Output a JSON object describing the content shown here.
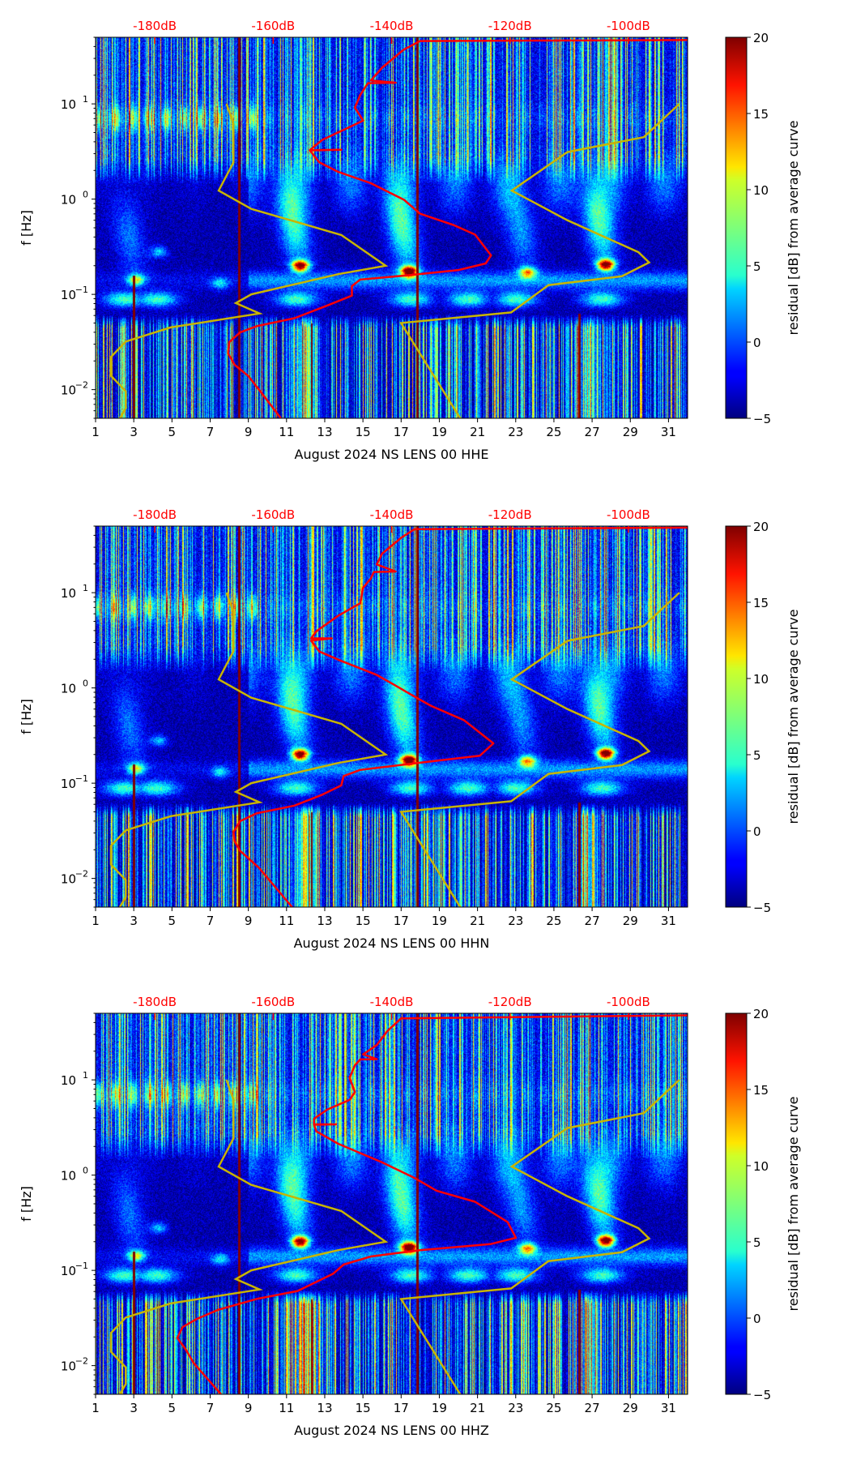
{
  "chart_data": [
    {
      "type": "heatmap",
      "xlabel": "August 2024 NS LENS 00 HHE",
      "ylabel": "f [Hz]",
      "xlim": [
        1,
        32
      ],
      "ylim": [
        0.005,
        50
      ],
      "yscale": "log",
      "xticks": [
        "1",
        "3",
        "5",
        "7",
        "9",
        "11",
        "13",
        "15",
        "17",
        "19",
        "21",
        "23",
        "25",
        "27",
        "29",
        "31"
      ],
      "yticks": [
        {
          "value": 10,
          "base": "10",
          "exp": "1"
        },
        {
          "value": 1,
          "base": "10",
          "exp": "0"
        },
        {
          "value": 0.1,
          "base": "10",
          "exp": "−1"
        },
        {
          "value": 0.01,
          "base": "10",
          "exp": "−2"
        }
      ],
      "top_axis": {
        "range_db": [
          -190,
          -90
        ],
        "ticks": [
          {
            "value": -180,
            "label": "-180dB"
          },
          {
            "value": -160,
            "label": "-160dB"
          },
          {
            "value": -140,
            "label": "-140dB"
          },
          {
            "value": -120,
            "label": "-120dB"
          },
          {
            "value": -100,
            "label": "-100dB"
          }
        ],
        "color": "#ff0000"
      },
      "colorbar": {
        "label": "residual [dB] from average curve",
        "range": [
          -5,
          20
        ],
        "ticks": [
          "−5",
          "0",
          "5",
          "10",
          "15",
          "20"
        ],
        "colormap": "jet"
      },
      "series": [
        {
          "name": "average curve",
          "color": "#ff0000",
          "points_db_hz": [
            [
              -90,
              46.8
            ],
            [
              -135.2,
              45.7
            ],
            [
              -138,
              36.9
            ],
            [
              -141.6,
              24.0
            ],
            [
              -143.5,
              17.6
            ],
            [
              -139.3,
              16.7
            ],
            [
              -144,
              16.5
            ],
            [
              -145.3,
              12.4
            ],
            [
              -146.2,
              9.12
            ],
            [
              -144.8,
              6.68
            ],
            [
              -147.1,
              5.71
            ],
            [
              -151.7,
              4.19
            ],
            [
              -153.8,
              3.27
            ],
            [
              -148.5,
              3.3
            ],
            [
              -153.8,
              3.25
            ],
            [
              -152.2,
              2.43
            ],
            [
              -149,
              1.93
            ],
            [
              -143.5,
              1.47
            ],
            [
              -137.9,
              0.984
            ],
            [
              -135.2,
              0.703
            ],
            [
              -129.6,
              0.537
            ],
            [
              -125.9,
              0.424
            ],
            [
              -123.2,
              0.257
            ],
            [
              -124.1,
              0.211
            ],
            [
              -128.7,
              0.18
            ],
            [
              -136.1,
              0.161
            ],
            [
              -145.3,
              0.143
            ],
            [
              -146.7,
              0.122
            ],
            [
              -146.7,
              0.097
            ],
            [
              -150.8,
              0.0767
            ],
            [
              -156.4,
              0.0562
            ],
            [
              -162.8,
              0.0463
            ],
            [
              -165.6,
              0.0398
            ],
            [
              -167.4,
              0.0316
            ],
            [
              -167.6,
              0.024
            ],
            [
              -166.5,
              0.0182
            ],
            [
              -164.2,
              0.0139
            ],
            [
              -161.9,
              0.00912
            ],
            [
              -158.7,
              0.005
            ]
          ]
        }
      ]
    },
    {
      "type": "heatmap",
      "xlabel": "August 2024 NS LENS 00 HHN",
      "ylabel": "f [Hz]",
      "xlim": [
        1,
        32
      ],
      "ylim": [
        0.005,
        50
      ],
      "yscale": "log",
      "xticks": [
        "1",
        "3",
        "5",
        "7",
        "9",
        "11",
        "13",
        "15",
        "17",
        "19",
        "21",
        "23",
        "25",
        "27",
        "29",
        "31"
      ],
      "yticks": [
        {
          "value": 10,
          "base": "10",
          "exp": "1"
        },
        {
          "value": 1,
          "base": "10",
          "exp": "0"
        },
        {
          "value": 0.1,
          "base": "10",
          "exp": "−1"
        },
        {
          "value": 0.01,
          "base": "10",
          "exp": "−2"
        }
      ],
      "top_axis": {
        "range_db": [
          -190,
          -90
        ],
        "ticks": [
          {
            "value": -180,
            "label": "-180dB"
          },
          {
            "value": -160,
            "label": "-160dB"
          },
          {
            "value": -140,
            "label": "-140dB"
          },
          {
            "value": -120,
            "label": "-120dB"
          },
          {
            "value": -100,
            "label": "-100dB"
          }
        ],
        "color": "#ff0000"
      },
      "colorbar": {
        "label": "residual [dB] from average curve",
        "range": [
          -5,
          20
        ],
        "ticks": [
          "−5",
          "0",
          "5",
          "10",
          "15",
          "20"
        ],
        "colormap": "jet"
      },
      "series": [
        {
          "name": "average curve",
          "color": "#ff0000",
          "points_db_hz": [
            [
              -90,
              48.2
            ],
            [
              -136.1,
              46.5
            ],
            [
              -138.4,
              37.6
            ],
            [
              -141.6,
              25.7
            ],
            [
              -142.5,
              19.8
            ],
            [
              -139.3,
              16.7
            ],
            [
              -143,
              16.5
            ],
            [
              -143.5,
              14.1
            ],
            [
              -144.8,
              11.3
            ],
            [
              -145.3,
              7.74
            ],
            [
              -149,
              5.73
            ],
            [
              -152.7,
              3.94
            ],
            [
              -153.6,
              3.31
            ],
            [
              -150.1,
              3.31
            ],
            [
              -153.6,
              3.14
            ],
            [
              -152.2,
              2.41
            ],
            [
              -148.5,
              1.92
            ],
            [
              -142.5,
              1.37
            ],
            [
              -139.7,
              1.09
            ],
            [
              -136.1,
              0.809
            ],
            [
              -133.3,
              0.646
            ],
            [
              -127.8,
              0.46
            ],
            [
              -122.8,
              0.262
            ],
            [
              -125.1,
              0.194
            ],
            [
              -134.2,
              0.167
            ],
            [
              -145.3,
              0.138
            ],
            [
              -148.1,
              0.119
            ],
            [
              -148.5,
              0.0948
            ],
            [
              -151.7,
              0.0757
            ],
            [
              -156.4,
              0.0582
            ],
            [
              -162.8,
              0.0482
            ],
            [
              -165.6,
              0.0399
            ],
            [
              -166.7,
              0.0307
            ],
            [
              -166.5,
              0.0245
            ],
            [
              -165.6,
              0.0195
            ],
            [
              -162.4,
              0.0129
            ],
            [
              -156.8,
              0.005
            ]
          ]
        }
      ]
    },
    {
      "type": "heatmap",
      "xlabel": "August 2024 NS LENS 00 HHZ",
      "ylabel": "f [Hz]",
      "xlim": [
        1,
        32
      ],
      "ylim": [
        0.005,
        50
      ],
      "yscale": "log",
      "xticks": [
        "1",
        "3",
        "5",
        "7",
        "9",
        "11",
        "13",
        "15",
        "17",
        "19",
        "21",
        "23",
        "25",
        "27",
        "29",
        "31"
      ],
      "yticks": [
        {
          "value": 10,
          "base": "10",
          "exp": "1"
        },
        {
          "value": 1,
          "base": "10",
          "exp": "0"
        },
        {
          "value": 0.1,
          "base": "10",
          "exp": "−1"
        },
        {
          "value": 0.01,
          "base": "10",
          "exp": "−2"
        }
      ],
      "top_axis": {
        "range_db": [
          -190,
          -90
        ],
        "ticks": [
          {
            "value": -180,
            "label": "-180dB"
          },
          {
            "value": -160,
            "label": "-160dB"
          },
          {
            "value": -140,
            "label": "-140dB"
          },
          {
            "value": -120,
            "label": "-120dB"
          },
          {
            "value": -100,
            "label": "-100dB"
          }
        ],
        "color": "#ff0000"
      },
      "colorbar": {
        "label": "residual [dB] from average curve",
        "range": [
          -5,
          20
        ],
        "ticks": [
          "−5",
          "0",
          "5",
          "10",
          "15",
          "20"
        ],
        "colormap": "jet"
      },
      "series": [
        {
          "name": "average curve",
          "color": "#ff0000",
          "points_db_hz": [
            [
              -90,
              47.6
            ],
            [
              -138.4,
              44.2
            ],
            [
              -140.7,
              32.6
            ],
            [
              -142.5,
              23.2
            ],
            [
              -144.8,
              18.5
            ],
            [
              -142.5,
              16.5
            ],
            [
              -145.3,
              16.4
            ],
            [
              -146.2,
              14.2
            ],
            [
              -147.1,
              10.5
            ],
            [
              -146.2,
              7.45
            ],
            [
              -147.1,
              6.15
            ],
            [
              -150.8,
              4.9
            ],
            [
              -153.1,
              3.91
            ],
            [
              -153.1,
              3.41
            ],
            [
              -149.4,
              3.41
            ],
            [
              -153.1,
              3.38
            ],
            [
              -152.7,
              2.88
            ],
            [
              -149,
              2.13
            ],
            [
              -141.6,
              1.36
            ],
            [
              -136.1,
              0.933
            ],
            [
              -132.4,
              0.685
            ],
            [
              -125.9,
              0.525
            ],
            [
              -120.4,
              0.321
            ],
            [
              -119,
              0.22
            ],
            [
              -123.2,
              0.189
            ],
            [
              -135.2,
              0.163
            ],
            [
              -143.5,
              0.14
            ],
            [
              -148.1,
              0.115
            ],
            [
              -149.9,
              0.092
            ],
            [
              -155.9,
              0.0607
            ],
            [
              -162.8,
              0.0501
            ],
            [
              -169.3,
              0.0385
            ],
            [
              -173,
              0.0307
            ],
            [
              -175.3,
              0.0254
            ],
            [
              -176.2,
              0.0195
            ],
            [
              -174.8,
              0.0149
            ],
            [
              -173.4,
              0.0106
            ],
            [
              -168.8,
              0.005
            ]
          ]
        }
      ]
    }
  ],
  "noise_models": {
    "color": "#c8b400",
    "NLNM": [
      [
        -167.9,
        10
      ],
      [
        -166.7,
        6.2
      ],
      [
        -166.7,
        2.43
      ],
      [
        -169.2,
        1.23
      ],
      [
        -163.7,
        0.79
      ],
      [
        -148.5,
        0.42
      ],
      [
        -141.0,
        0.2
      ],
      [
        -149,
        0.163
      ],
      [
        -163.7,
        0.1
      ],
      [
        -166.3,
        0.081
      ],
      [
        -162.3,
        0.063
      ],
      [
        -177.3,
        0.045
      ],
      [
        -184.9,
        0.032
      ],
      [
        -187.4,
        0.022
      ],
      [
        -187.4,
        0.014
      ],
      [
        -184.9,
        0.0096
      ],
      [
        -184.9,
        0.0064
      ],
      [
        -185.9,
        0.005
      ]
    ],
    "NHNM": [
      [
        -91.4,
        10
      ],
      [
        -97.4,
        4.47
      ],
      [
        -110.3,
        3.12
      ],
      [
        -119.7,
        1.23
      ],
      [
        -110.3,
        0.6
      ],
      [
        -98.3,
        0.277
      ],
      [
        -96.5,
        0.216
      ],
      [
        -101.1,
        0.155
      ],
      [
        -113.5,
        0.125
      ],
      [
        -119.8,
        0.0646
      ],
      [
        -138.4,
        0.05
      ],
      [
        -128.4,
        0.005
      ]
    ]
  }
}
